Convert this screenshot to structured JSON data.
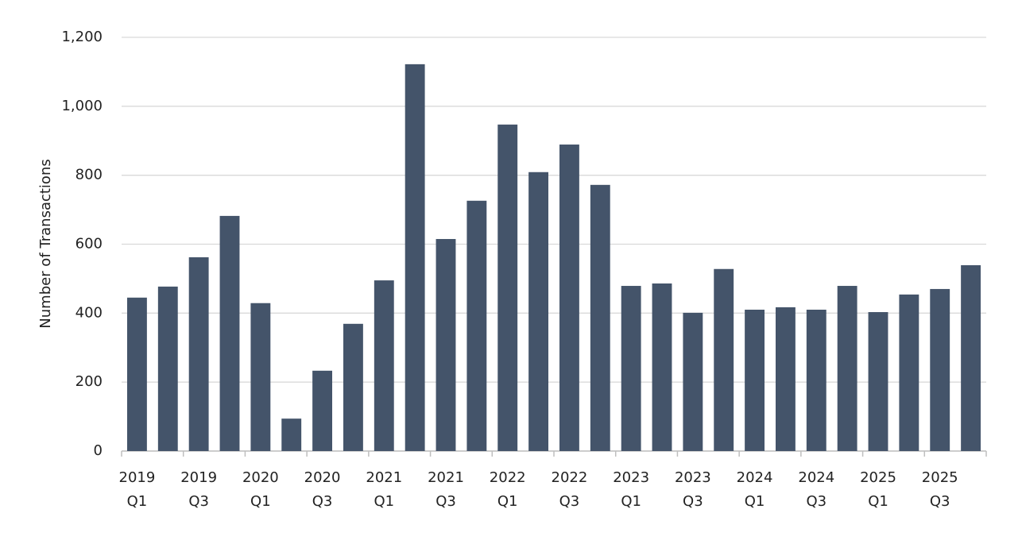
{
  "chart_data": {
    "type": "bar",
    "y_label": "Number of Transactions",
    "categories": [
      "2019\nQ1",
      null,
      "2019\nQ3",
      null,
      "2020\nQ1",
      null,
      "2020\nQ3",
      null,
      "2021\nQ1",
      null,
      "2021\nQ3",
      null,
      "2022\nQ1",
      null,
      "2022\nQ3",
      null,
      "2023\nQ1",
      null,
      "2023\nQ3",
      null,
      "2024\nQ1",
      null,
      "2024\nQ3",
      null,
      "2025\nQ1",
      null,
      "2025\nQ3",
      null
    ],
    "values": [
      445,
      477,
      562,
      682,
      429,
      94,
      233,
      369,
      495,
      1122,
      615,
      726,
      947,
      809,
      889,
      772,
      479,
      486,
      401,
      528,
      410,
      417,
      410,
      479,
      403,
      454,
      470,
      539
    ],
    "color": "#44546a",
    "ylim": [
      0,
      1200
    ],
    "yticks": [
      0,
      200,
      400,
      600,
      800,
      {
        "value": 1000,
        "label": "1,000"
      },
      {
        "value": 1200,
        "label": "1,200"
      }
    ],
    "grid": true
  }
}
